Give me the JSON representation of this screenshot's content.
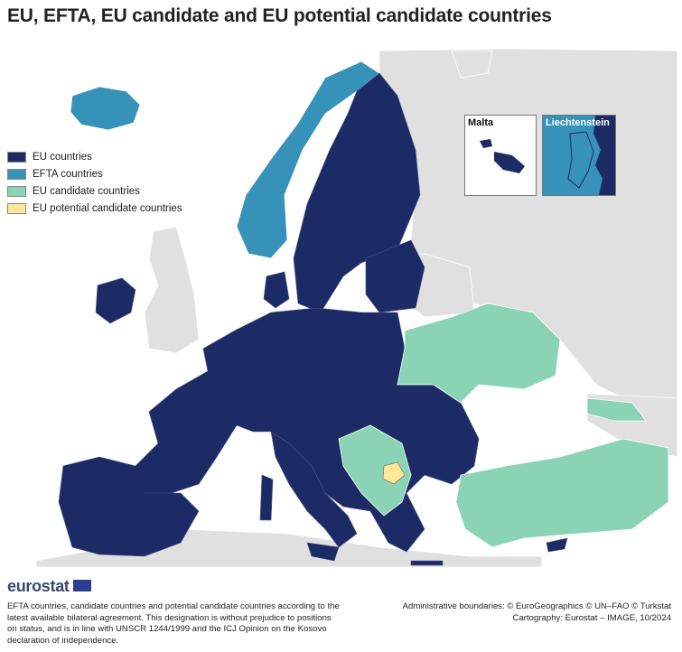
{
  "title": "EU, EFTA, EU candidate and EU potential candidate countries",
  "colors": {
    "eu": "#1c2a66",
    "efta": "#3692b8",
    "candidate": "#8ad3b5",
    "potential": "#ffe999",
    "other": "#e0e0e0",
    "sea": "#ffffff"
  },
  "legend": [
    {
      "label": "EU countries",
      "color": "#1c2a66"
    },
    {
      "label": "EFTA countries",
      "color": "#3692b8"
    },
    {
      "label": "EU candidate countries",
      "color": "#8ad3b5"
    },
    {
      "label": "EU potential candidate countries",
      "color": "#ffe999"
    }
  ],
  "insets": {
    "malta": "Malta",
    "liechtenstein": "Liechtenstein"
  },
  "logo": "eurostat",
  "note": "EFTA countries, candidate countries and potential candidate countries according to the latest available bilateral agreement. This designation is without prejudice to positions on status, and is in line with UNSCR 1244/1999 and the ICJ Opinion on the Kosovo declaration of independence.",
  "credits": {
    "line1": "Administrative boundaries: © EuroGeographics © UN–FAO © Turkstat",
    "line2": "Cartography: Eurostat – IMAGE, 10/2024"
  }
}
